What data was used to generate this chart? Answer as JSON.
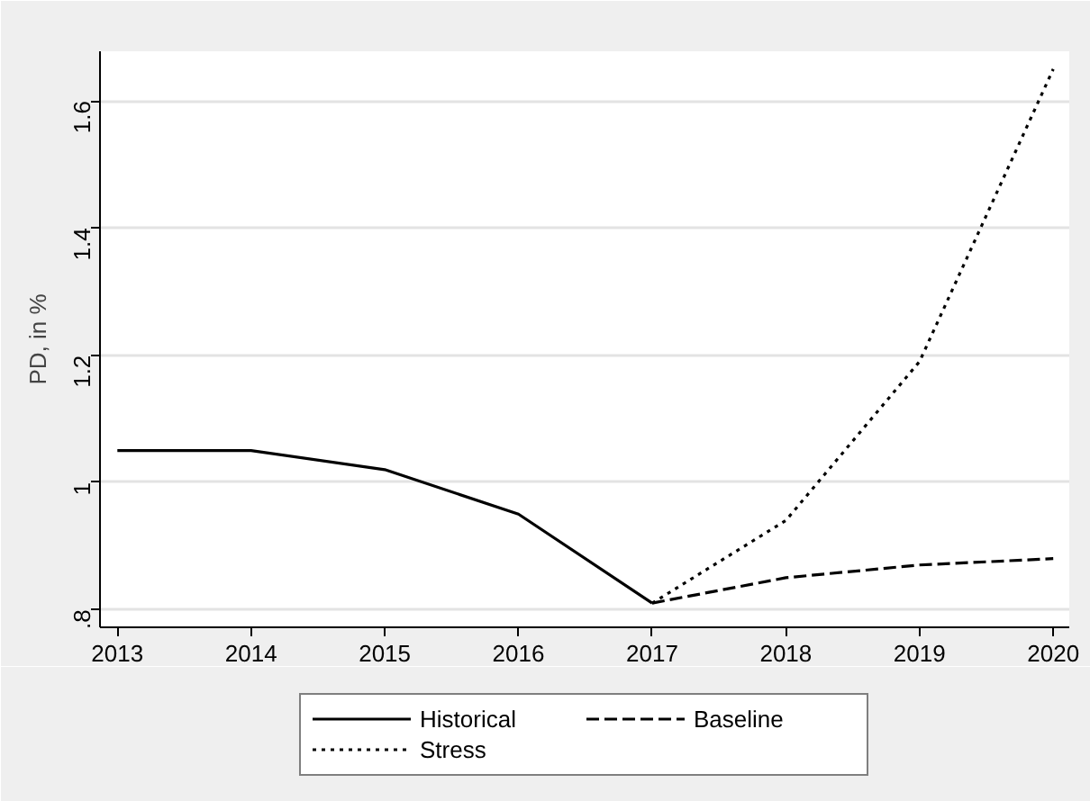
{
  "chart_data": {
    "type": "line",
    "ylabel": "PD, in %",
    "xlim": [
      2012.87,
      2020.12
    ],
    "xticks": [
      2013,
      2014,
      2015,
      2016,
      2017,
      2018,
      2019,
      2020
    ],
    "ylim": [
      0.772,
      1.678
    ],
    "yticks": [
      {
        "value": 0.8,
        "label": ".8"
      },
      {
        "value": 1,
        "label": "1"
      },
      {
        "value": 1.2,
        "label": "1.2"
      },
      {
        "value": 1.4,
        "label": "1.4"
      },
      {
        "value": 1.6,
        "label": "1.6"
      }
    ],
    "grid": "y",
    "legend": "bottom",
    "marker": "none",
    "series": [
      {
        "name": "Historical",
        "color": "#000000",
        "line_style": "solid",
        "x": [
          2013,
          2014,
          2015,
          2016,
          2017
        ],
        "values": [
          1.05,
          1.05,
          1.02,
          0.95,
          0.81
        ]
      },
      {
        "name": "Baseline",
        "color": "#000000",
        "line_style": "dashed",
        "x": [
          2017,
          2018,
          2019,
          2020
        ],
        "values": [
          0.81,
          0.85,
          0.87,
          0.88
        ]
      },
      {
        "name": "Stress",
        "color": "#000000",
        "line_style": "dotted",
        "x": [
          2017,
          2018,
          2019,
          2020
        ],
        "values": [
          0.81,
          0.94,
          1.19,
          1.65
        ]
      }
    ]
  }
}
